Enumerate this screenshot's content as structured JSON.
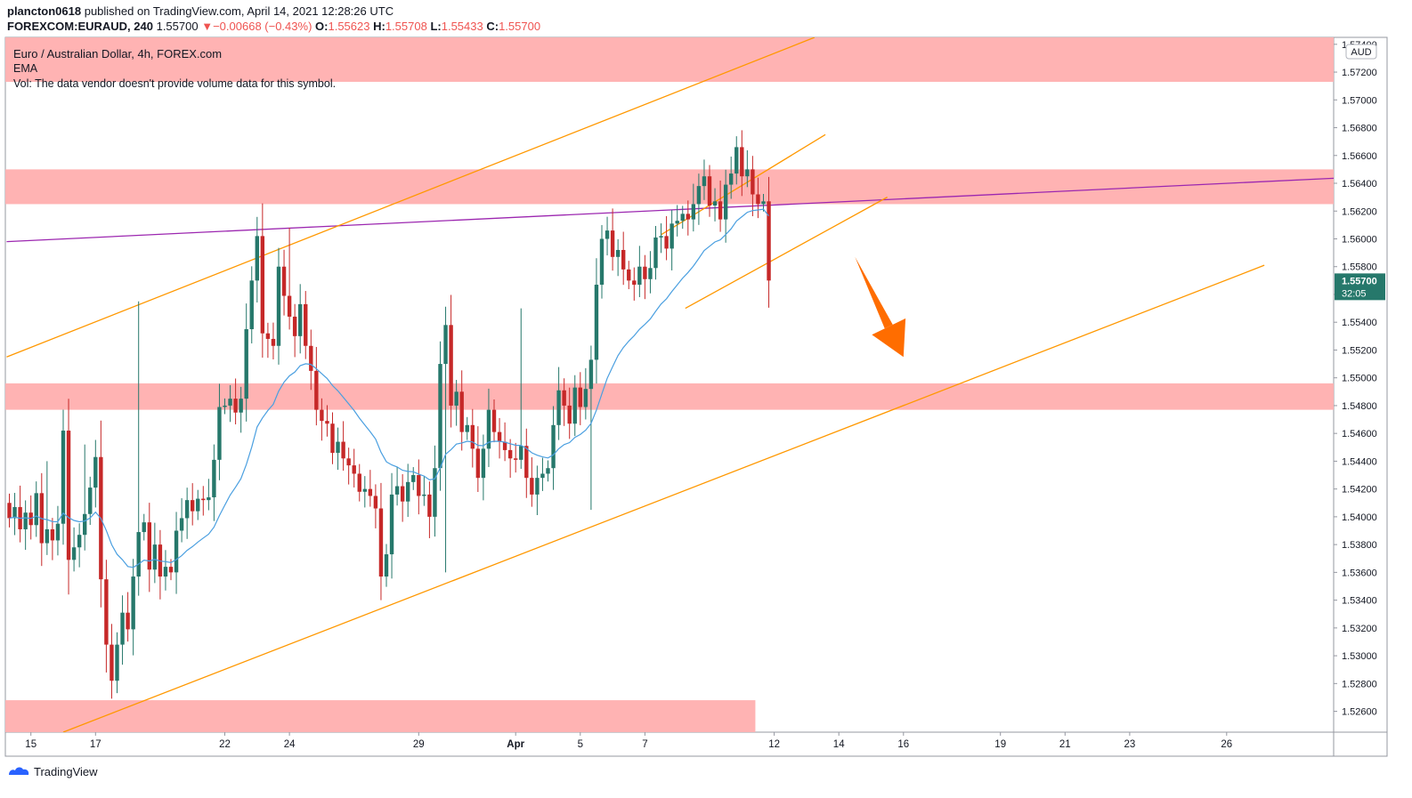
{
  "header": {
    "author": "plancton0618",
    "published": "published on TradingView.com, April 14, 2021 12:28:26 UTC",
    "symbol": "FOREXCOM:EURAUD, 240",
    "last": "1.55700",
    "change": "▼−0.00668 (−0.43%)",
    "o_label": "O:",
    "o": "1.55623",
    "h_label": "H:",
    "h": "1.55708",
    "l_label": "L:",
    "l": "1.55433",
    "c_label": "C:",
    "c": "1.55700"
  },
  "legend": {
    "title": "Euro / Australian Dollar, 4h, FOREX.com",
    "ema": "EMA",
    "vol": "Vol: The data vendor doesn't provide volume data for this symbol."
  },
  "price_scale": {
    "currency": "AUD",
    "current_price": "1.55700",
    "countdown": "32:05"
  },
  "footer": {
    "brand": "TradingView"
  },
  "colors": {
    "up": "#26786b",
    "down": "#c62828",
    "ema": "#4a9fe0",
    "zone": "#ffb3b3",
    "channel": "#ff9800",
    "trend": "#9c27b0",
    "arrow": "#ff6d00",
    "last_price": "#26786b"
  },
  "chart_data": {
    "type": "candlestick",
    "title": "Euro / Australian Dollar, 4h, FOREX.com",
    "ylim": [
      1.5245,
      1.5745
    ],
    "y_ticks": [
      1.574,
      1.572,
      1.57,
      1.568,
      1.566,
      1.564,
      1.562,
      1.56,
      1.558,
      1.556,
      1.554,
      1.552,
      1.55,
      1.548,
      1.546,
      1.544,
      1.542,
      1.54,
      1.538,
      1.536,
      1.534,
      1.532,
      1.53,
      1.528,
      1.526
    ],
    "y_tick_labels": [
      "1.57400",
      "1.57200",
      "1.57000",
      "1.56800",
      "1.56600",
      "1.56400",
      "1.56200",
      "1.56000",
      "1.55800",
      "1.55600",
      "1.55400",
      "1.55200",
      "1.55000",
      "1.54800",
      "1.54600",
      "1.54400",
      "1.54200",
      "1.54000",
      "1.53800",
      "1.53600",
      "1.53400",
      "1.53200",
      "1.53000",
      "1.52800",
      "1.52600"
    ],
    "x_ticks": [
      {
        "label": "15",
        "bar": 4
      },
      {
        "label": "17",
        "bar": 16
      },
      {
        "label": "22",
        "bar": 40
      },
      {
        "label": "24",
        "bar": 52
      },
      {
        "label": "29",
        "bar": 76
      },
      {
        "label": "Apr",
        "bar": 94
      },
      {
        "label": "5",
        "bar": 106
      },
      {
        "label": "7",
        "bar": 118
      },
      {
        "label": "12",
        "bar": 142
      },
      {
        "label": "14",
        "bar": 154
      },
      {
        "label": "16",
        "bar": 166
      },
      {
        "label": "19",
        "bar": 184
      },
      {
        "label": "21",
        "bar": 196
      },
      {
        "label": "23",
        "bar": 208
      },
      {
        "label": "26",
        "bar": 226
      }
    ],
    "closes": [
      1.5399,
      1.5407,
      1.5391,
      1.5403,
      1.5394,
      1.5417,
      1.5381,
      1.5391,
      1.5383,
      1.5395,
      1.5462,
      1.5369,
      1.5378,
      1.5387,
      1.5402,
      1.5421,
      1.5443,
      1.5355,
      1.5308,
      1.5282,
      1.5308,
      1.5331,
      1.5319,
      1.5357,
      1.5389,
      1.5396,
      1.5362,
      1.538,
      1.5357,
      1.5364,
      1.536,
      1.539,
      1.5399,
      1.5412,
      1.5404,
      1.5413,
      1.5412,
      1.5414,
      1.5441,
      1.5479,
      1.548,
      1.5485,
      1.5475,
      1.5485,
      1.5535,
      1.557,
      1.5602,
      1.5532,
      1.5528,
      1.5523,
      1.558,
      1.5559,
      1.5544,
      1.553,
      1.5553,
      1.5523,
      1.5505,
      1.5477,
      1.5469,
      1.5467,
      1.5446,
      1.5454,
      1.5442,
      1.5437,
      1.5431,
      1.5418,
      1.542,
      1.5415,
      1.5406,
      1.5357,
      1.5373,
      1.5416,
      1.5422,
      1.5411,
      1.5425,
      1.543,
      1.5415,
      1.5416,
      1.54,
      1.5435,
      1.551,
      1.5538,
      1.548,
      1.549,
      1.5461,
      1.5466,
      1.5449,
      1.5428,
      1.5449,
      1.5477,
      1.5461,
      1.5454,
      1.5448,
      1.5442,
      1.5441,
      1.5451,
      1.5428,
      1.5416,
      1.5428,
      1.5431,
      1.5435,
      1.5466,
      1.5491,
      1.548,
      1.5467,
      1.5493,
      1.5479,
      1.5492,
      1.5513,
      1.5567,
      1.56,
      1.5606,
      1.5587,
      1.5592,
      1.5578,
      1.557,
      1.5567,
      1.558,
      1.5571,
      1.5579,
      1.5601,
      1.5602,
      1.5593,
      1.5611,
      1.5613,
      1.5618,
      1.5614,
      1.5625,
      1.5638,
      1.5645,
      1.5624,
      1.5627,
      1.5614,
      1.5639,
      1.5647,
      1.5666,
      1.5645,
      1.565,
      1.5632,
      1.5625,
      1.5627,
      1.557
    ]
  },
  "annotations": {
    "zones": [
      {
        "top": 1.5745,
        "bottom": 1.5713
      },
      {
        "top": 1.565,
        "bottom": 1.5625
      },
      {
        "top": 1.5496,
        "bottom": 1.5477
      },
      {
        "top": 1.5268,
        "bottom": 1.5245
      }
    ],
    "trendline_resistance": {
      "from": [
        -0.5,
        1.5598
      ],
      "to": [
        248,
        1.5644
      ]
    },
    "channel_upper": {
      "from": [
        -0.5,
        1.5515
      ],
      "to": [
        149.5,
        1.5745
      ]
    },
    "channel_lower": {
      "from": [
        10,
        1.5245
      ],
      "to": [
        233,
        1.5581
      ]
    },
    "small_channel_upper": {
      "from": [
        121,
        1.5603
      ],
      "to": [
        151.5,
        1.5675
      ]
    },
    "small_channel_lower": {
      "from": [
        125.5,
        1.555
      ],
      "to": [
        163,
        1.563
      ]
    },
    "arrow": {
      "from": [
        157,
        1.5587
      ],
      "to": [
        166,
        1.5515
      ]
    }
  }
}
